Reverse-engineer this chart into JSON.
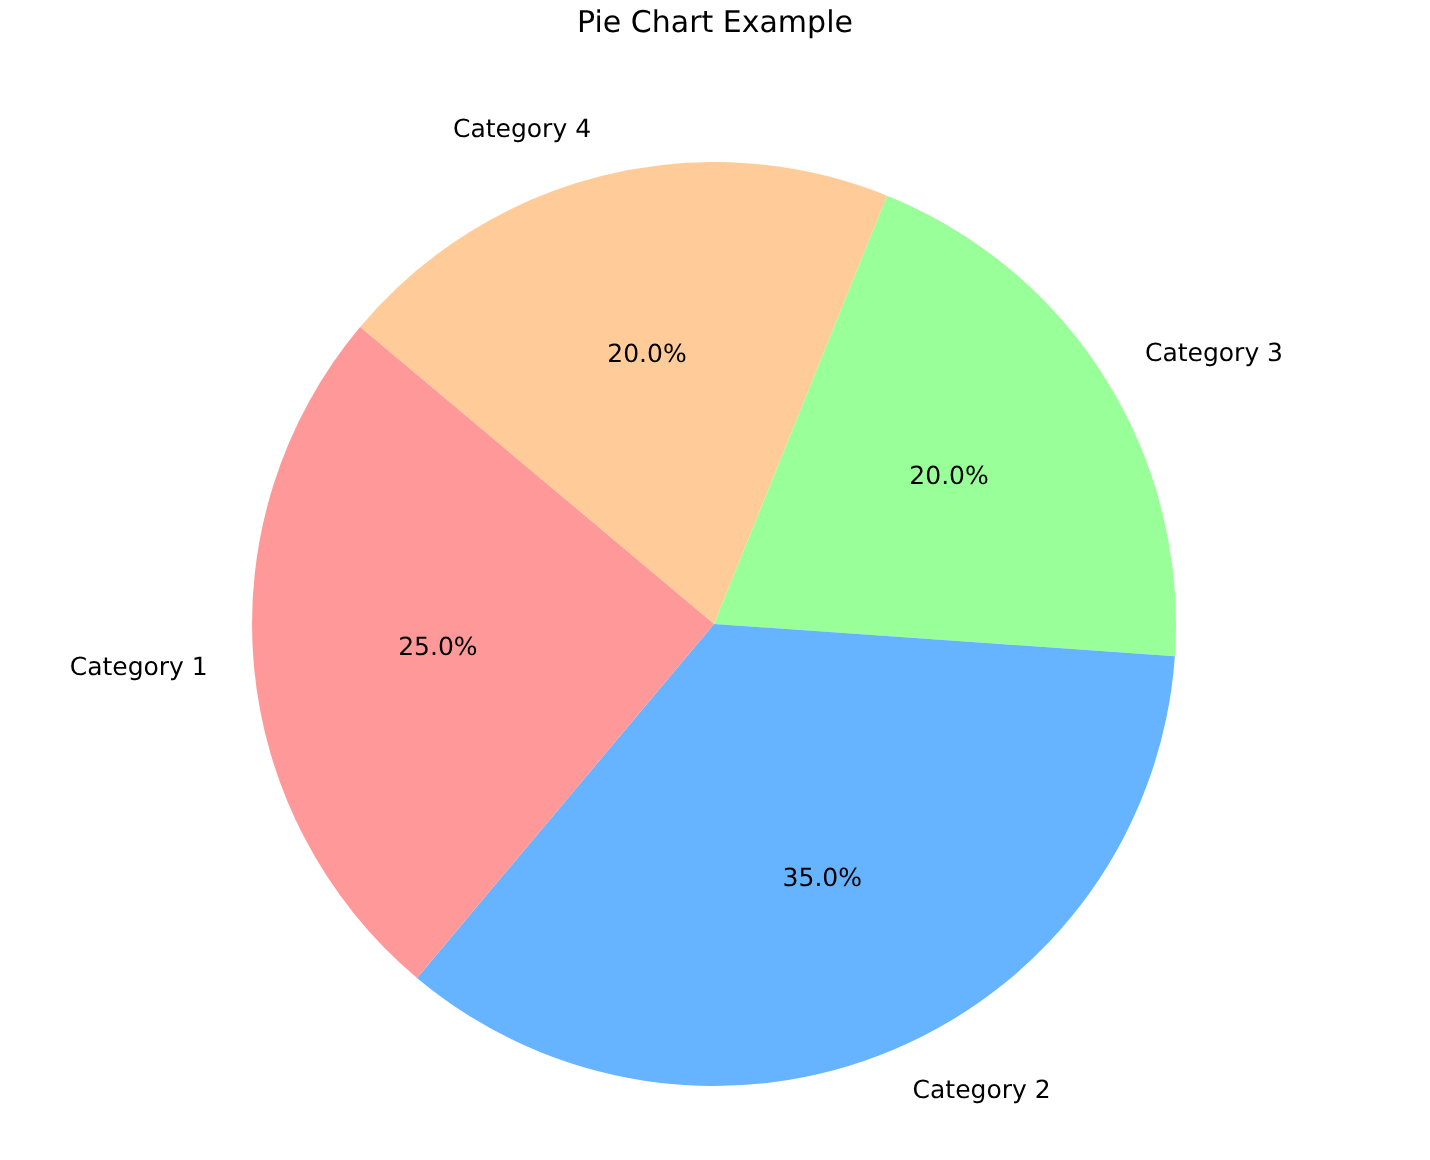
{
  "chart_data": {
    "type": "pie",
    "title": "Pie Chart Example",
    "categories": [
      "Category 1",
      "Category 2",
      "Category 3",
      "Category 4"
    ],
    "values": [
      25,
      35,
      20,
      20
    ],
    "colors": [
      "#ff9999",
      "#66b3ff",
      "#99ff99",
      "#ffcc99"
    ],
    "value_labels": [
      "25.0%",
      "35.0%",
      "20.0%",
      "20.0%"
    ]
  }
}
